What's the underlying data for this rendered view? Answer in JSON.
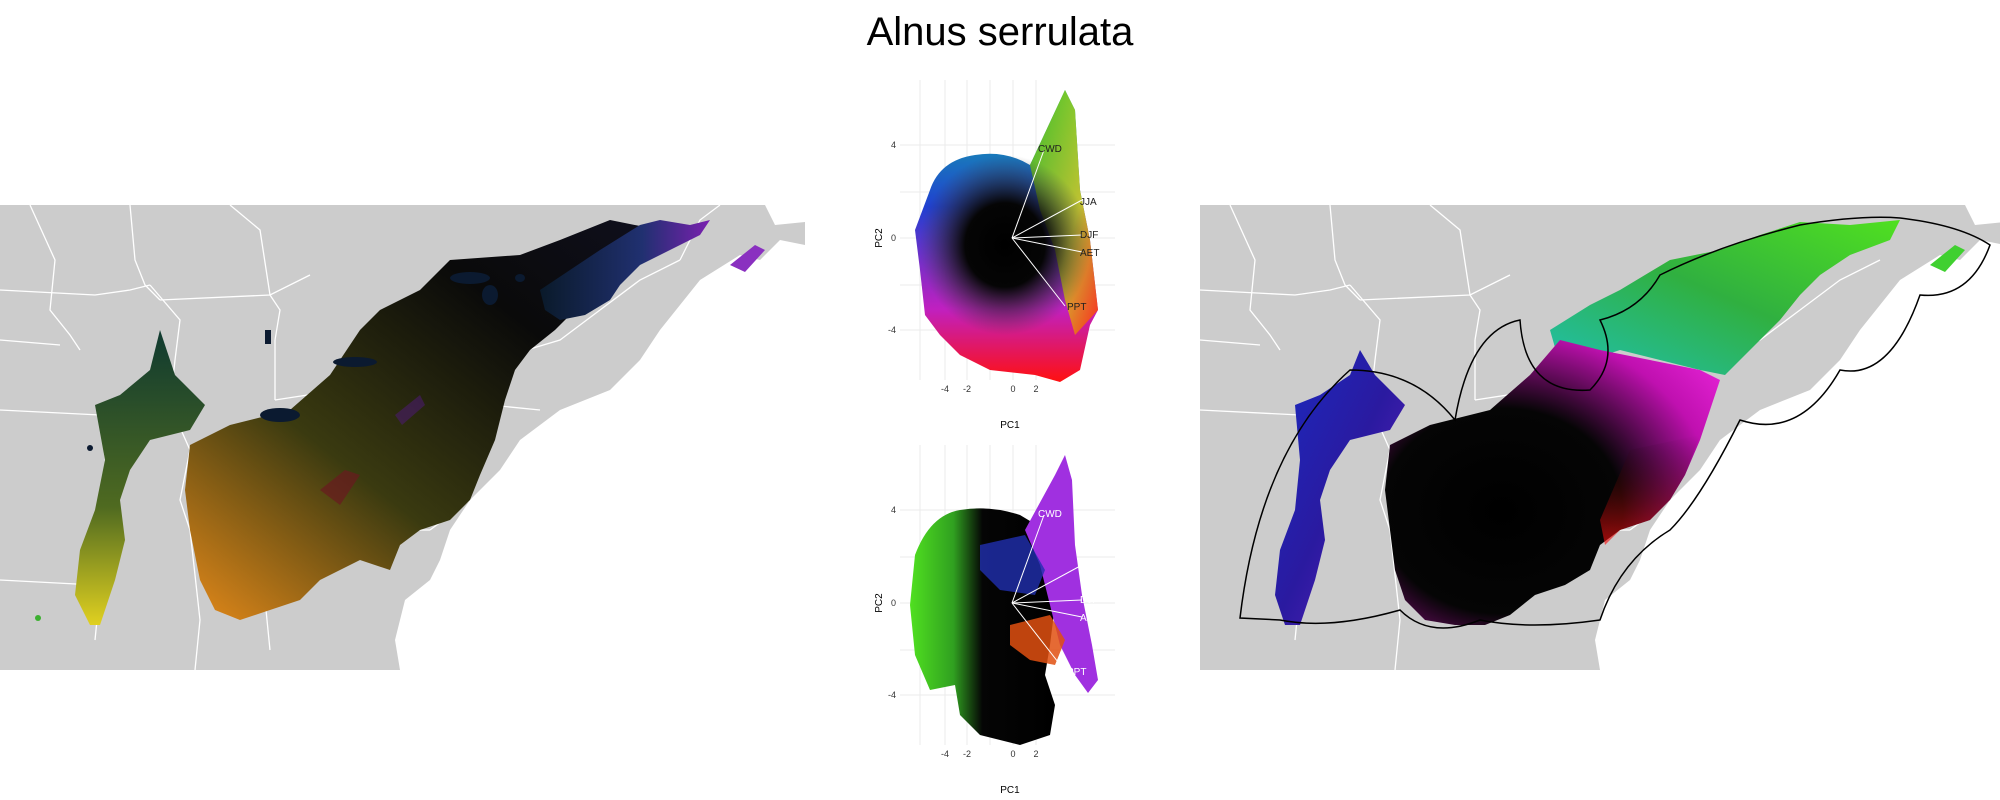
{
  "title": "Alnus serrulata",
  "pca": {
    "xlabel": "PC1",
    "ylabel": "PC2",
    "xticks": [
      "-4",
      "-2",
      "0",
      "2"
    ],
    "yticks": [
      "4",
      "0",
      "-4"
    ],
    "loadings": [
      "CWD",
      "JJA",
      "DJF",
      "AET",
      "PPT"
    ]
  },
  "colors": {
    "land": "#cccccc",
    "boundary": "#ffffff",
    "grid": "#ebebeb",
    "hull_outline": "#000000"
  }
}
